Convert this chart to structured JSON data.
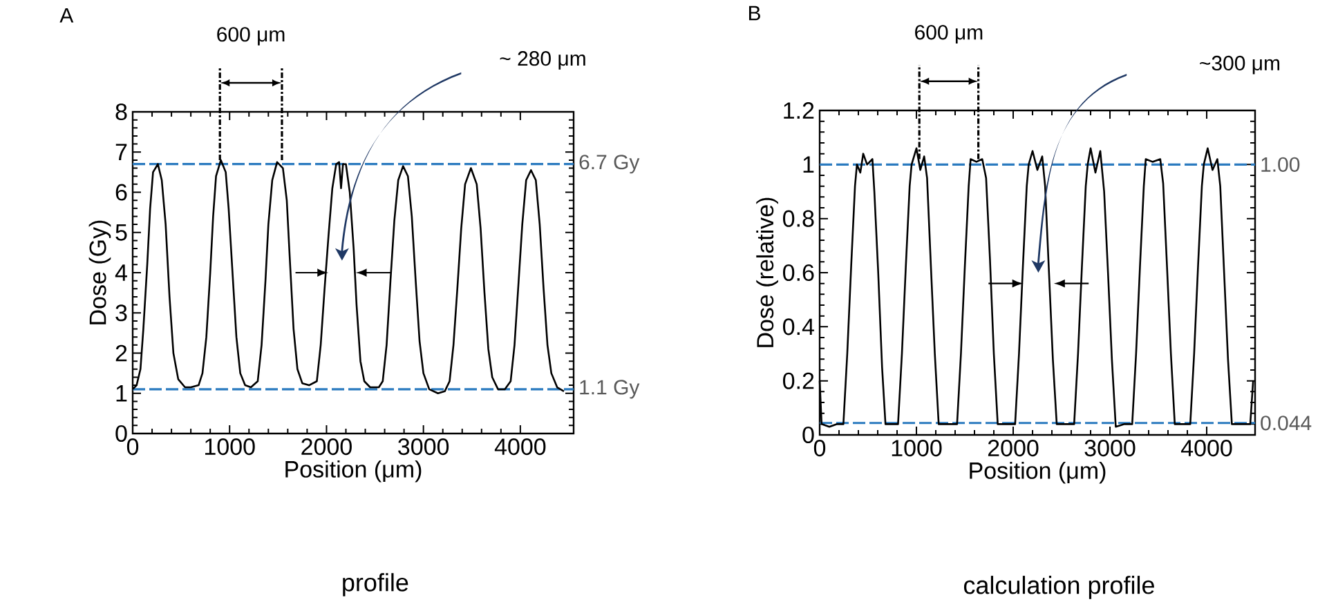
{
  "chart_data": [
    {
      "type": "line",
      "xlabel": "Position (μm)",
      "ylabel": "Dose (Gy)",
      "x": [
        0,
        40,
        80,
        110,
        150,
        180,
        210,
        260,
        300,
        340,
        380,
        420,
        470,
        540,
        600,
        680,
        720,
        760,
        800,
        830,
        860,
        910,
        960,
        990,
        1030,
        1070,
        1110,
        1160,
        1220,
        1290,
        1330,
        1370,
        1400,
        1440,
        1490,
        1550,
        1590,
        1620,
        1660,
        1700,
        1750,
        1820,
        1900,
        1940,
        1980,
        2020,
        2060,
        2100,
        2130,
        2150,
        2170,
        2200,
        2240,
        2280,
        2310,
        2350,
        2390,
        2450,
        2540,
        2580,
        2620,
        2660,
        2700,
        2740,
        2790,
        2840,
        2880,
        2920,
        2960,
        3000,
        3060,
        3150,
        3220,
        3270,
        3310,
        3350,
        3390,
        3430,
        3490,
        3550,
        3590,
        3630,
        3670,
        3710,
        3770,
        3840,
        3900,
        3940,
        3980,
        4020,
        4060,
        4110,
        4160,
        4200,
        4240,
        4280,
        4320,
        4380,
        4450
      ],
      "series": [
        {
          "color": "#000000",
          "values": [
            1.1,
            1.2,
            1.6,
            2.6,
            4.2,
            5.6,
            6.5,
            6.7,
            6.3,
            5.2,
            3.4,
            2.0,
            1.35,
            1.15,
            1.15,
            1.2,
            1.5,
            2.4,
            4.0,
            5.4,
            6.4,
            6.8,
            6.5,
            5.6,
            4.0,
            2.4,
            1.5,
            1.2,
            1.15,
            1.3,
            2.2,
            3.8,
            5.2,
            6.3,
            6.75,
            6.6,
            5.8,
            4.4,
            2.6,
            1.6,
            1.25,
            1.2,
            1.3,
            2.2,
            3.6,
            4.9,
            6.1,
            6.7,
            6.75,
            6.1,
            6.7,
            6.7,
            6.0,
            4.6,
            3.2,
            1.8,
            1.3,
            1.15,
            1.15,
            1.3,
            2.2,
            3.8,
            5.3,
            6.3,
            6.65,
            6.4,
            5.4,
            3.8,
            2.3,
            1.5,
            1.1,
            1.0,
            1.05,
            1.3,
            2.2,
            3.6,
            5.1,
            6.2,
            6.6,
            6.2,
            5.1,
            3.5,
            2.1,
            1.4,
            1.1,
            1.1,
            1.3,
            2.2,
            3.7,
            5.2,
            6.3,
            6.55,
            6.3,
            5.2,
            3.6,
            2.2,
            1.5,
            1.15,
            1.05
          ]
        }
      ],
      "xlim": [
        0,
        4550
      ],
      "ylim": [
        0,
        8
      ],
      "xticks": [
        0,
        1000,
        2000,
        3000,
        4000
      ],
      "yticks": [
        0,
        1,
        2,
        3,
        4,
        5,
        6,
        7,
        8
      ],
      "ref_lines": [
        {
          "axis": "y",
          "value": 6.7,
          "label": "6.7 Gy",
          "color": "#2a7abf",
          "line_style": "dashed"
        },
        {
          "axis": "y",
          "value": 1.1,
          "label": "1.1 Gy",
          "color": "#2a7abf",
          "line_style": "dashed"
        }
      ],
      "annotations": [
        "A",
        {
          "text": "600 μm",
          "x": 900,
          "y": 6.8
        },
        "~ 280 μm",
        "profile"
      ]
    },
    {
      "type": "line",
      "xlabel": "Position (μm)",
      "ylabel": "Dose (relative)",
      "x": [
        0,
        20,
        100,
        180,
        245,
        285,
        325,
        365,
        385,
        420,
        450,
        490,
        545,
        565,
        605,
        645,
        680,
        740,
        810,
        850,
        890,
        930,
        950,
        1000,
        1040,
        1080,
        1110,
        1150,
        1190,
        1230,
        1320,
        1420,
        1460,
        1500,
        1540,
        1560,
        1620,
        1680,
        1720,
        1760,
        1800,
        1840,
        1940,
        2020,
        2060,
        2100,
        2140,
        2160,
        2200,
        2250,
        2300,
        2330,
        2370,
        2410,
        2450,
        2530,
        2630,
        2670,
        2710,
        2750,
        2770,
        2800,
        2850,
        2900,
        2940,
        2980,
        3020,
        3060,
        3150,
        3230,
        3270,
        3310,
        3350,
        3370,
        3440,
        3520,
        3550,
        3590,
        3630,
        3670,
        3760,
        3830,
        3870,
        3910,
        3950,
        3970,
        4010,
        4060,
        4110,
        4140,
        4180,
        4220,
        4260,
        4380,
        4450,
        4480
      ],
      "series": [
        {
          "color": "#000000",
          "values": [
            0.2,
            0.04,
            0.03,
            0.04,
            0.04,
            0.3,
            0.62,
            0.92,
            1.0,
            0.97,
            1.04,
            1.0,
            1.02,
            0.9,
            0.6,
            0.25,
            0.04,
            0.04,
            0.04,
            0.3,
            0.62,
            0.92,
            1.0,
            1.06,
            0.98,
            1.03,
            0.95,
            0.62,
            0.3,
            0.04,
            0.04,
            0.04,
            0.3,
            0.62,
            0.92,
            1.02,
            1.01,
            1.02,
            0.95,
            0.65,
            0.3,
            0.04,
            0.04,
            0.04,
            0.3,
            0.62,
            0.92,
            1.0,
            1.05,
            0.98,
            1.03,
            0.92,
            0.6,
            0.28,
            0.04,
            0.04,
            0.04,
            0.3,
            0.62,
            0.92,
            1.0,
            1.06,
            0.97,
            1.05,
            0.9,
            0.6,
            0.28,
            0.03,
            0.04,
            0.04,
            0.3,
            0.62,
            0.92,
            1.02,
            1.01,
            1.02,
            0.93,
            0.62,
            0.3,
            0.04,
            0.04,
            0.04,
            0.3,
            0.62,
            0.92,
            1.0,
            1.06,
            0.98,
            1.02,
            0.92,
            0.6,
            0.28,
            0.04,
            0.04,
            0.04,
            0.2
          ]
        }
      ],
      "xlim": [
        0,
        4500
      ],
      "ylim": [
        0,
        1.2
      ],
      "xticks": [
        0,
        1000,
        2000,
        3000,
        4000
      ],
      "yticks": [
        0,
        0.2,
        0.4,
        0.6,
        0.8,
        1,
        1.2
      ],
      "ref_lines": [
        {
          "axis": "y",
          "value": 1.0,
          "label": "1.00",
          "color": "#2a7abf",
          "line_style": "dashed"
        },
        {
          "axis": "y",
          "value": 0.044,
          "label": "0.044",
          "color": "#2a7abf",
          "line_style": "dashed"
        }
      ],
      "annotations": [
        "B",
        {
          "text": "600 μm",
          "x": 1030,
          "y": 1.02
        },
        "~300 μm",
        "calculation profile"
      ]
    }
  ]
}
